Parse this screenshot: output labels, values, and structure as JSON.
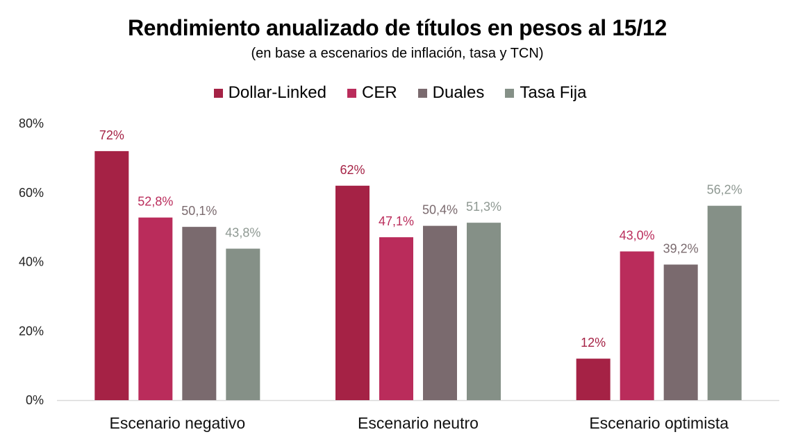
{
  "chart_data": {
    "type": "bar",
    "title": "Rendimiento anualizado de títulos en pesos al 15/12",
    "subtitle": "(en base a escenarios de inflación, tasa y TCN)",
    "categories": [
      "Escenario negativo",
      "Escenario neutro",
      "Escenario optimista"
    ],
    "series": [
      {
        "name": "Dollar-Linked",
        "color": "#A52245",
        "label_color": "#A52245",
        "values": [
          72,
          62,
          12
        ],
        "labels": [
          "72%",
          "62%",
          "12%"
        ]
      },
      {
        "name": "CER",
        "color": "#BA2C5B",
        "label_color": "#BA2C5B",
        "values": [
          52.8,
          47.1,
          43.0
        ],
        "labels": [
          "52,8%",
          "47,1%",
          "43,0%"
        ]
      },
      {
        "name": "Duales",
        "color": "#7A6A6E",
        "label_color": "#7A6A6E",
        "values": [
          50.1,
          50.4,
          39.2
        ],
        "labels": [
          "50,1%",
          "50,4%",
          "39,2%"
        ]
      },
      {
        "name": "Tasa Fija",
        "color": "#859087",
        "label_color": "#8E9892",
        "values": [
          43.8,
          51.3,
          56.2
        ],
        "labels": [
          "43,8%",
          "51,3%",
          "56,2%"
        ]
      }
    ],
    "ylim": [
      0,
      80
    ],
    "yticks": [
      0,
      20,
      40,
      60,
      80
    ],
    "ytick_labels": [
      "0%",
      "20%",
      "40%",
      "60%",
      "80%"
    ],
    "legend_position": "top-center",
    "grid": false
  }
}
